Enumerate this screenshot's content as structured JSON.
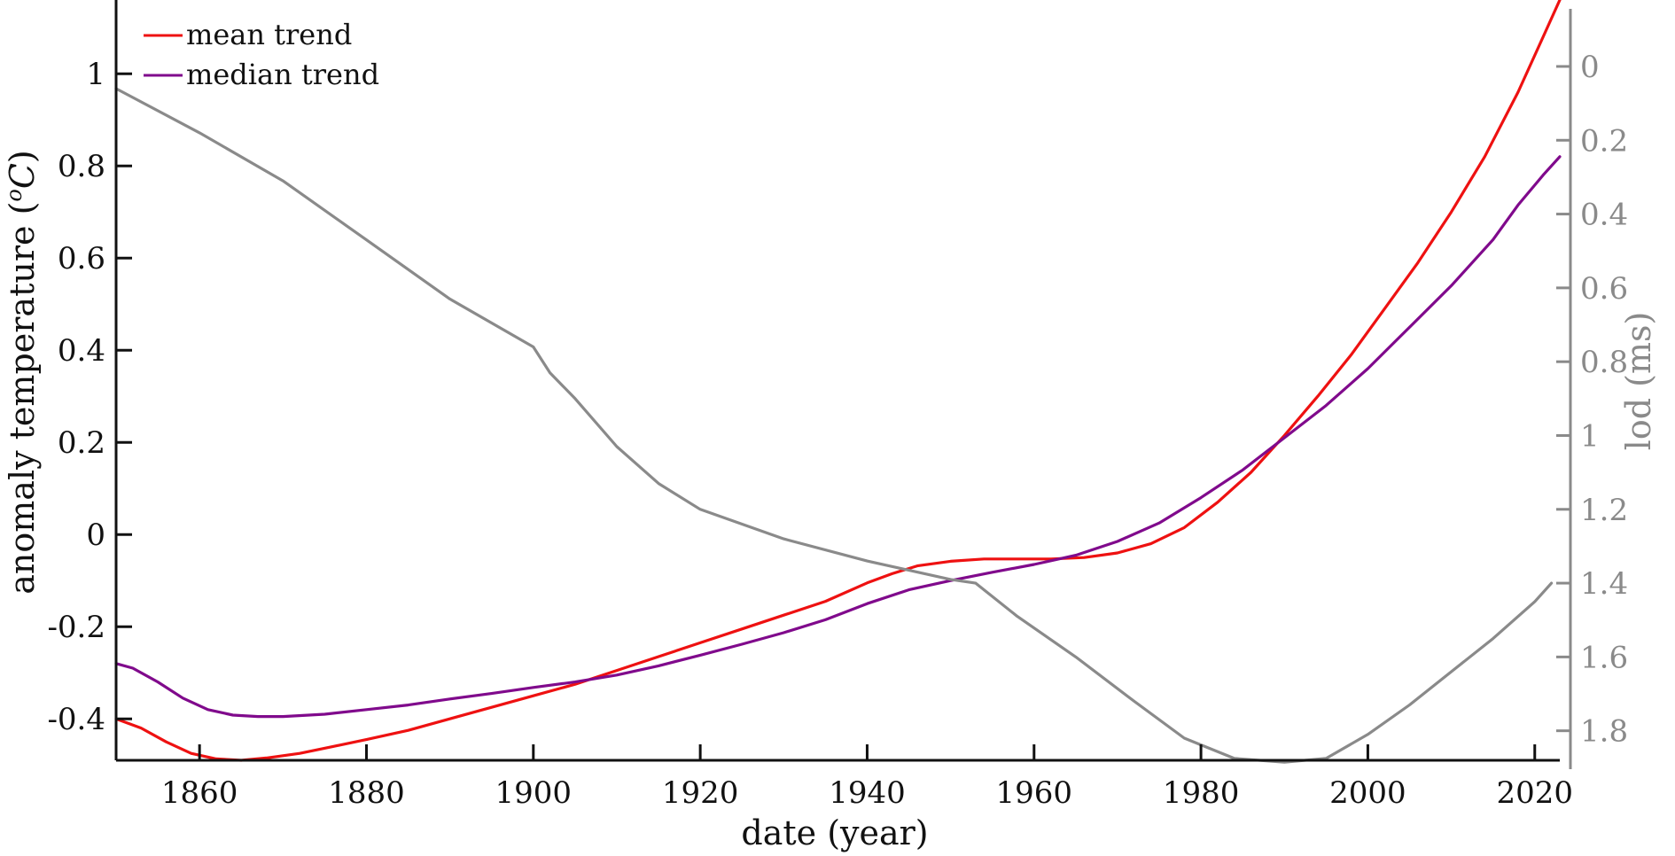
{
  "chart_data": {
    "type": "line",
    "title": "",
    "xlabel": "date (year)",
    "ylabel_left_prefix": "anomaly temperature (",
    "ylabel_left_sup": "o",
    "ylabel_left_unit": "C",
    "ylabel_left_suffix": ")",
    "ylabel_right": "lod (ms)",
    "xlim": [
      1850,
      2023
    ],
    "ylim_left": [
      -0.49,
      1.16
    ],
    "ylim_right": [
      -0.18,
      1.88
    ],
    "right_axis_reversed": true,
    "grid": false,
    "legend_position": "top-left",
    "x_ticks": [
      "1860",
      "1880",
      "1900",
      "1920",
      "1940",
      "1960",
      "1980",
      "2000",
      "2020"
    ],
    "y_left_ticks": [
      "-0.4",
      "-0.2",
      "0",
      "0.2",
      "0.4",
      "0.6",
      "0.8",
      "1"
    ],
    "y_right_ticks": [
      "0",
      "0.2",
      "0.4",
      "0.6",
      "0.8",
      "1",
      "1.2",
      "1.4",
      "1.6",
      "1.8"
    ],
    "colors": {
      "mean": "#ee1111",
      "median": "#800a8c",
      "lod": "#8a8a8a",
      "axis": "#111111",
      "right_axis": "#8a8a8a"
    },
    "series": [
      {
        "name": "mean trend",
        "axis": "left",
        "x": [
          1850,
          1853,
          1856,
          1859,
          1862,
          1865,
          1868,
          1872,
          1876,
          1880,
          1885,
          1890,
          1895,
          1900,
          1905,
          1910,
          1915,
          1920,
          1925,
          1930,
          1935,
          1940,
          1943,
          1946,
          1950,
          1954,
          1958,
          1962,
          1966,
          1970,
          1974,
          1978,
          1982,
          1986,
          1990,
          1994,
          1998,
          2002,
          2006,
          2010,
          2014,
          2018,
          2021,
          2023
        ],
        "y": [
          -0.4,
          -0.42,
          -0.45,
          -0.475,
          -0.487,
          -0.49,
          -0.485,
          -0.475,
          -0.46,
          -0.445,
          -0.425,
          -0.4,
          -0.375,
          -0.35,
          -0.325,
          -0.295,
          -0.265,
          -0.235,
          -0.205,
          -0.175,
          -0.145,
          -0.105,
          -0.085,
          -0.068,
          -0.058,
          -0.053,
          -0.053,
          -0.053,
          -0.05,
          -0.04,
          -0.02,
          0.015,
          0.07,
          0.135,
          0.215,
          0.3,
          0.39,
          0.49,
          0.59,
          0.7,
          0.82,
          0.96,
          1.08,
          1.16
        ]
      },
      {
        "name": "median trend",
        "axis": "left",
        "x": [
          1850,
          1852,
          1855,
          1858,
          1861,
          1864,
          1867,
          1870,
          1875,
          1880,
          1885,
          1890,
          1895,
          1900,
          1905,
          1910,
          1915,
          1920,
          1925,
          1930,
          1935,
          1940,
          1945,
          1950,
          1955,
          1960,
          1965,
          1970,
          1975,
          1980,
          1985,
          1990,
          1995,
          2000,
          2005,
          2010,
          2015,
          2018,
          2021,
          2023
        ],
        "y": [
          -0.28,
          -0.29,
          -0.32,
          -0.355,
          -0.38,
          -0.392,
          -0.395,
          -0.395,
          -0.39,
          -0.38,
          -0.37,
          -0.357,
          -0.345,
          -0.332,
          -0.32,
          -0.305,
          -0.285,
          -0.262,
          -0.238,
          -0.213,
          -0.185,
          -0.15,
          -0.12,
          -0.1,
          -0.082,
          -0.065,
          -0.045,
          -0.015,
          0.025,
          0.08,
          0.14,
          0.21,
          0.28,
          0.36,
          0.45,
          0.54,
          0.64,
          0.715,
          0.78,
          0.82
        ]
      },
      {
        "name": "",
        "axis": "right",
        "x": [
          1850,
          1860,
          1870,
          1880,
          1890,
          1900,
          1902,
          1905,
          1910,
          1915,
          1920,
          1930,
          1940,
          1950,
          1953,
          1958,
          1965,
          1972,
          1978,
          1984,
          1990,
          1995,
          2000,
          2005,
          2010,
          2015,
          2020,
          2022
        ],
        "y": [
          0.06,
          0.18,
          0.31,
          0.47,
          0.63,
          0.76,
          0.83,
          0.9,
          1.03,
          1.13,
          1.2,
          1.28,
          1.34,
          1.39,
          1.4,
          1.49,
          1.6,
          1.72,
          1.82,
          1.875,
          1.885,
          1.875,
          1.81,
          1.73,
          1.64,
          1.55,
          1.45,
          1.4
        ]
      }
    ]
  }
}
